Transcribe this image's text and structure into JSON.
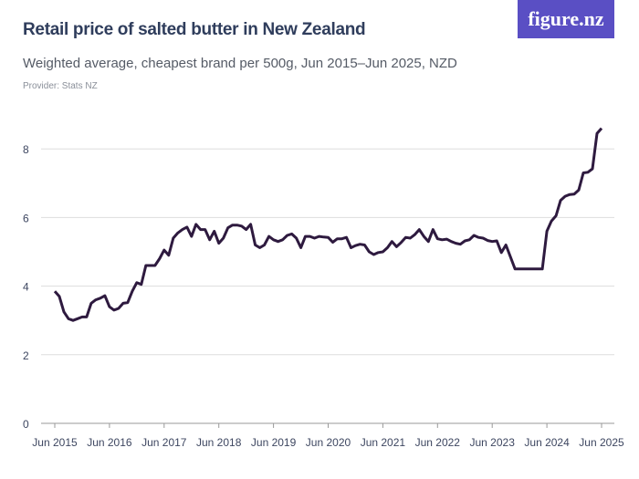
{
  "header": {
    "title": "Retail price of salted butter in New Zealand",
    "subtitle": "Weighted average, cheapest brand per 500g, Jun 2015–Jun 2025, NZD",
    "provider": "Provider: Stats NZ",
    "logo": "figure.nz"
  },
  "chart_data": {
    "type": "line",
    "title": "Retail price of salted butter in New Zealand",
    "subtitle": "Weighted average, cheapest brand per 500g, Jun 2015–Jun 2025, NZD",
    "xlabel": "",
    "ylabel": "",
    "x_start": "Jun 2015",
    "x_end": "Jun 2025",
    "frequency": "monthly",
    "ylim": [
      0,
      8.8
    ],
    "y_ticks": [
      0,
      2,
      4,
      6,
      8
    ],
    "x_ticks": [
      "Jun 2015",
      "Jun 2016",
      "Jun 2017",
      "Jun 2018",
      "Jun 2019",
      "Jun 2020",
      "Jun 2021",
      "Jun 2022",
      "Jun 2023",
      "Jun 2024",
      "Jun 2025"
    ],
    "grid": "horizontal",
    "line_color": "#2e1a3f",
    "values": [
      3.85,
      3.7,
      3.25,
      3.05,
      3.0,
      3.05,
      3.1,
      3.1,
      3.5,
      3.6,
      3.65,
      3.72,
      3.4,
      3.3,
      3.35,
      3.5,
      3.52,
      3.85,
      4.1,
      4.05,
      4.6,
      4.6,
      4.6,
      4.8,
      5.05,
      4.9,
      5.4,
      5.55,
      5.65,
      5.72,
      5.45,
      5.8,
      5.65,
      5.65,
      5.35,
      5.6,
      5.25,
      5.4,
      5.7,
      5.78,
      5.78,
      5.75,
      5.65,
      5.8,
      5.2,
      5.12,
      5.2,
      5.45,
      5.35,
      5.3,
      5.35,
      5.48,
      5.52,
      5.4,
      5.12,
      5.45,
      5.45,
      5.4,
      5.45,
      5.43,
      5.42,
      5.28,
      5.38,
      5.38,
      5.42,
      5.12,
      5.18,
      5.22,
      5.2,
      5.0,
      4.92,
      4.98,
      5.0,
      5.12,
      5.3,
      5.15,
      5.27,
      5.42,
      5.4,
      5.5,
      5.65,
      5.45,
      5.3,
      5.65,
      5.38,
      5.35,
      5.37,
      5.3,
      5.25,
      5.22,
      5.32,
      5.35,
      5.48,
      5.42,
      5.4,
      5.33,
      5.3,
      5.32,
      4.98,
      5.2,
      4.85,
      4.5,
      4.5,
      4.5,
      4.5,
      4.5,
      4.5,
      4.5,
      5.6,
      5.9,
      6.05,
      6.5,
      6.62,
      6.67,
      6.68,
      6.8,
      7.3,
      7.32,
      7.42,
      8.45,
      8.6
    ]
  }
}
